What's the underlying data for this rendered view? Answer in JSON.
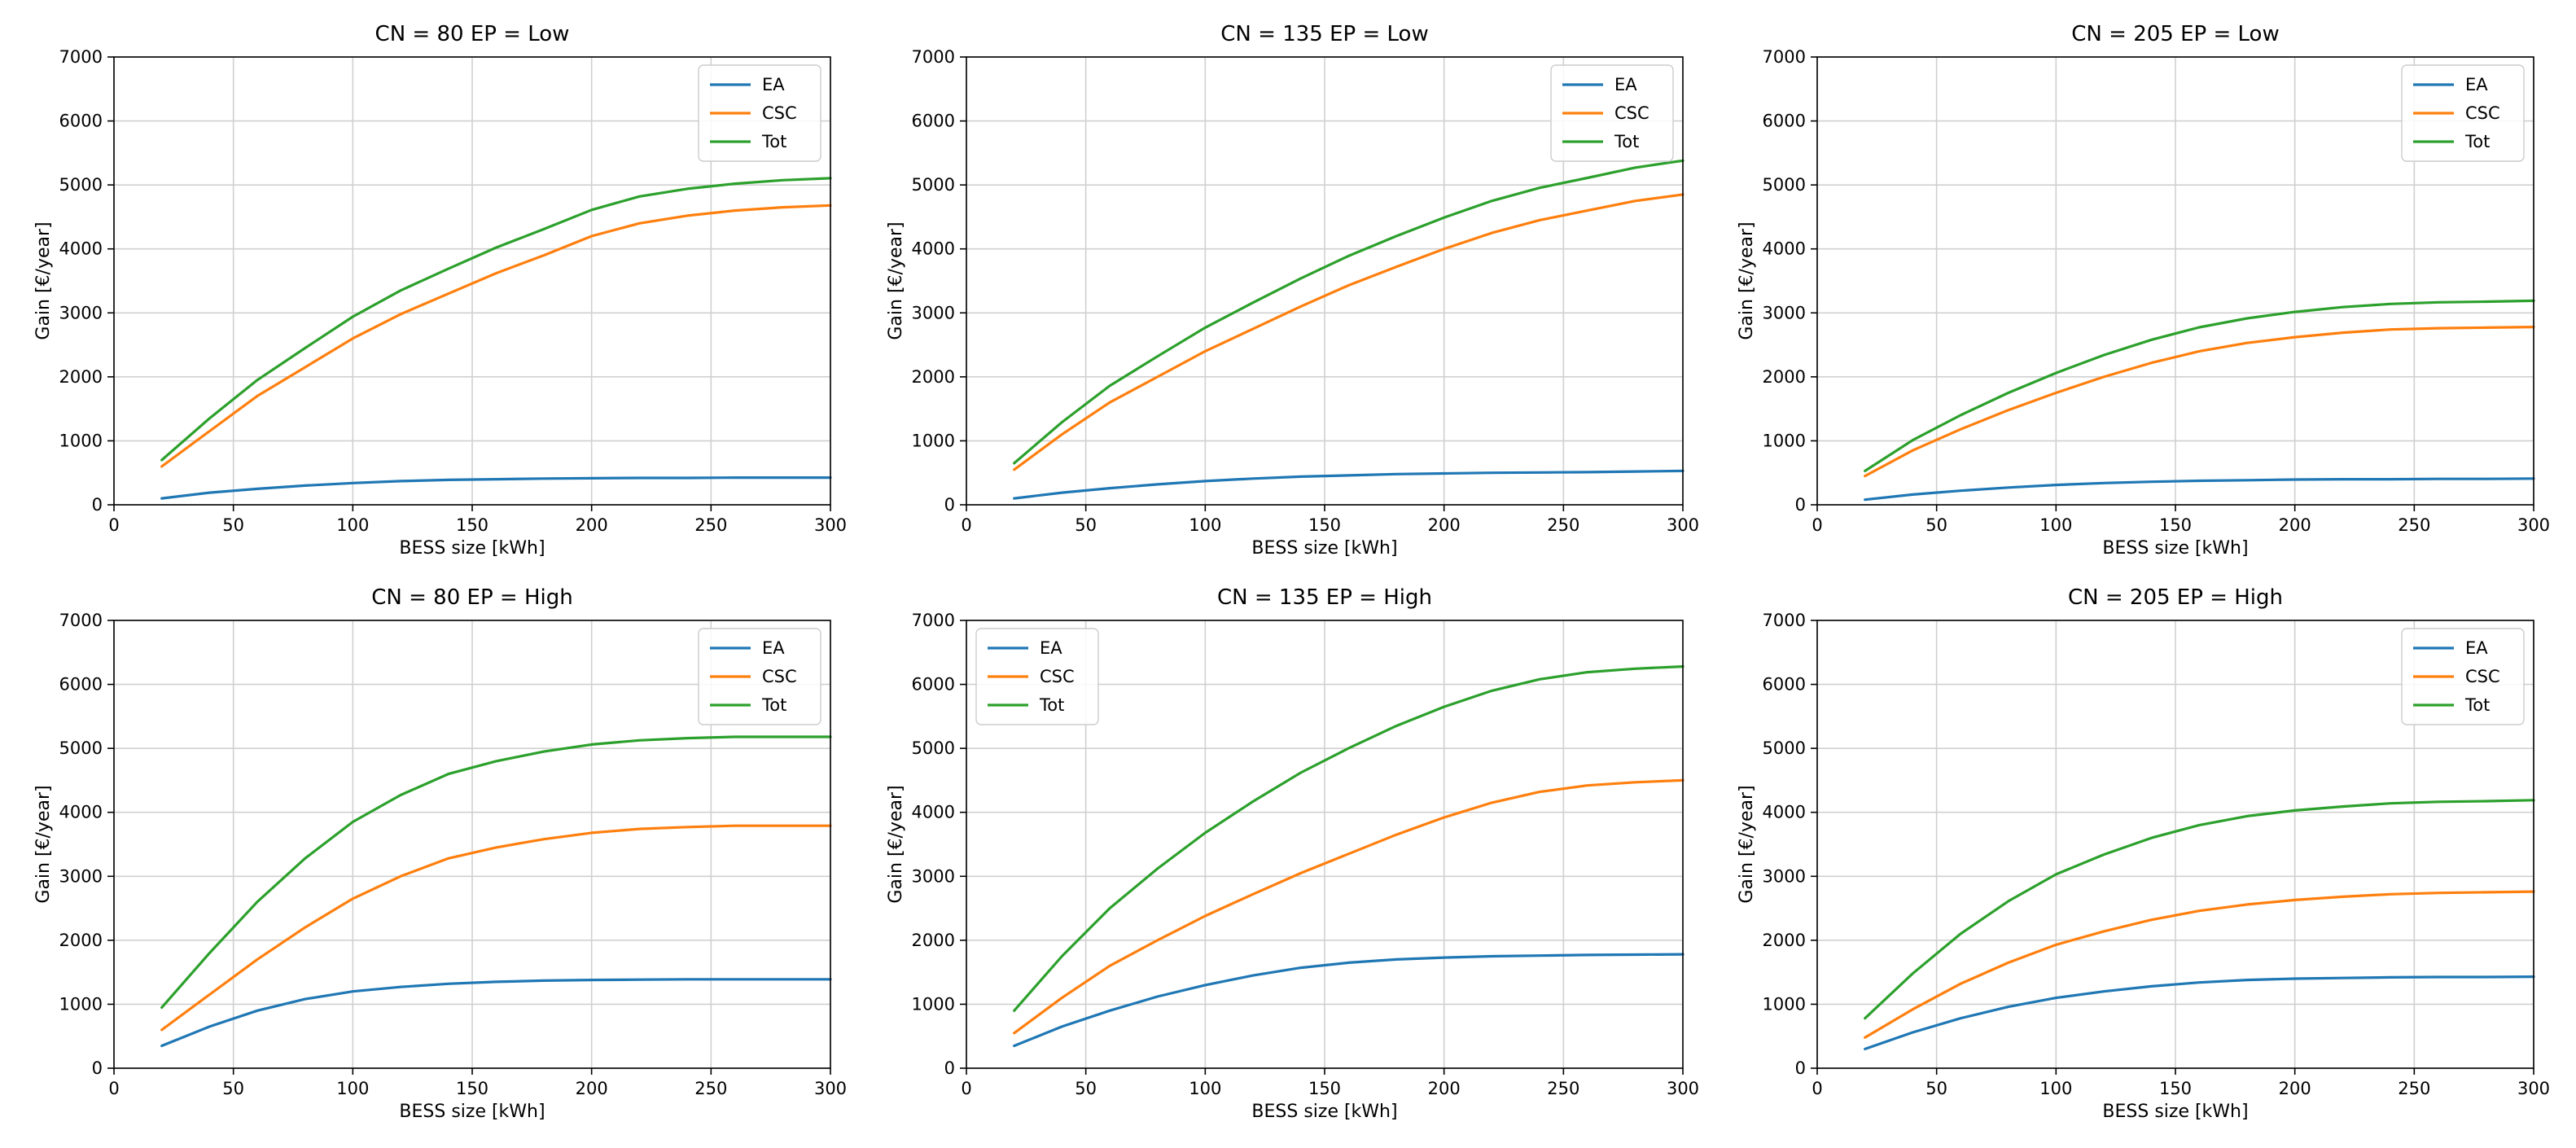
{
  "chart_data": [
    {
      "type": "line",
      "title": "CN = 80 EP = Low",
      "xlabel": "BESS size [kWh]",
      "ylabel": "Gain [€/year]",
      "xlim": [
        0,
        300
      ],
      "ylim": [
        0,
        7000
      ],
      "xticks": [
        0,
        50,
        100,
        150,
        200,
        250,
        300
      ],
      "yticks": [
        0,
        1000,
        2000,
        3000,
        4000,
        5000,
        6000,
        7000
      ],
      "grid": true,
      "legend": "top-right",
      "x": [
        20,
        40,
        60,
        80,
        100,
        120,
        140,
        160,
        180,
        200,
        220,
        240,
        260,
        280,
        300
      ],
      "series": [
        {
          "name": "EA",
          "color": "#1f77b4",
          "values": [
            100,
            190,
            250,
            300,
            340,
            370,
            390,
            400,
            410,
            415,
            420,
            420,
            425,
            425,
            425
          ]
        },
        {
          "name": "CSC",
          "color": "#ff7f0e",
          "values": [
            600,
            1150,
            1700,
            2150,
            2600,
            2980,
            3300,
            3620,
            3900,
            4200,
            4400,
            4520,
            4600,
            4650,
            4680
          ]
        },
        {
          "name": "Tot",
          "color": "#2ca02c",
          "values": [
            700,
            1350,
            1950,
            2450,
            2940,
            3350,
            3690,
            4020,
            4310,
            4610,
            4820,
            4940,
            5020,
            5075,
            5105
          ]
        }
      ]
    },
    {
      "type": "line",
      "title": "CN = 135 EP = Low",
      "xlabel": "BESS size [kWh]",
      "ylabel": "Gain [€/year]",
      "xlim": [
        0,
        300
      ],
      "ylim": [
        0,
        7000
      ],
      "xticks": [
        0,
        50,
        100,
        150,
        200,
        250,
        300
      ],
      "yticks": [
        0,
        1000,
        2000,
        3000,
        4000,
        5000,
        6000,
        7000
      ],
      "grid": true,
      "legend": "top-right",
      "x": [
        20,
        40,
        60,
        80,
        100,
        120,
        140,
        160,
        180,
        200,
        220,
        240,
        260,
        280,
        300
      ],
      "series": [
        {
          "name": "EA",
          "color": "#1f77b4",
          "values": [
            100,
            190,
            260,
            320,
            370,
            410,
            440,
            460,
            480,
            490,
            500,
            505,
            510,
            520,
            530
          ]
        },
        {
          "name": "CSC",
          "color": "#ff7f0e",
          "values": [
            550,
            1100,
            1600,
            2000,
            2400,
            2750,
            3100,
            3430,
            3720,
            4000,
            4250,
            4450,
            4600,
            4750,
            4850
          ]
        },
        {
          "name": "Tot",
          "color": "#2ca02c",
          "values": [
            650,
            1290,
            1860,
            2320,
            2770,
            3160,
            3540,
            3890,
            4200,
            4490,
            4750,
            4955,
            5110,
            5270,
            5380
          ]
        }
      ]
    },
    {
      "type": "line",
      "title": "CN = 205 EP = Low",
      "xlabel": "BESS size [kWh]",
      "ylabel": "Gain [€/year]",
      "xlim": [
        0,
        300
      ],
      "ylim": [
        0,
        7000
      ],
      "xticks": [
        0,
        50,
        100,
        150,
        200,
        250,
        300
      ],
      "yticks": [
        0,
        1000,
        2000,
        3000,
        4000,
        5000,
        6000,
        7000
      ],
      "grid": true,
      "legend": "top-right",
      "x": [
        20,
        40,
        60,
        80,
        100,
        120,
        140,
        160,
        180,
        200,
        220,
        240,
        260,
        280,
        300
      ],
      "series": [
        {
          "name": "EA",
          "color": "#1f77b4",
          "values": [
            80,
            160,
            220,
            270,
            310,
            340,
            360,
            375,
            385,
            395,
            400,
            400,
            405,
            405,
            410
          ]
        },
        {
          "name": "CSC",
          "color": "#ff7f0e",
          "values": [
            450,
            850,
            1180,
            1480,
            1750,
            2000,
            2220,
            2400,
            2530,
            2620,
            2690,
            2740,
            2760,
            2770,
            2780
          ]
        },
        {
          "name": "Tot",
          "color": "#2ca02c",
          "values": [
            530,
            1010,
            1400,
            1750,
            2060,
            2340,
            2580,
            2775,
            2915,
            3015,
            3090,
            3140,
            3165,
            3175,
            3190
          ]
        }
      ]
    },
    {
      "type": "line",
      "title": "CN = 80 EP = High",
      "xlabel": "BESS size [kWh]",
      "ylabel": "Gain [€/year]",
      "xlim": [
        0,
        300
      ],
      "ylim": [
        0,
        7000
      ],
      "xticks": [
        0,
        50,
        100,
        150,
        200,
        250,
        300
      ],
      "yticks": [
        0,
        1000,
        2000,
        3000,
        4000,
        5000,
        6000,
        7000
      ],
      "grid": true,
      "legend": "top-right",
      "x": [
        20,
        40,
        60,
        80,
        100,
        120,
        140,
        160,
        180,
        200,
        220,
        240,
        260,
        280,
        300
      ],
      "series": [
        {
          "name": "EA",
          "color": "#1f77b4",
          "values": [
            350,
            650,
            900,
            1080,
            1200,
            1270,
            1320,
            1350,
            1370,
            1380,
            1385,
            1390,
            1390,
            1390,
            1390
          ]
        },
        {
          "name": "CSC",
          "color": "#ff7f0e",
          "values": [
            600,
            1150,
            1700,
            2200,
            2650,
            3000,
            3280,
            3450,
            3580,
            3680,
            3740,
            3770,
            3790,
            3790,
            3790
          ]
        },
        {
          "name": "Tot",
          "color": "#2ca02c",
          "values": [
            950,
            1800,
            2600,
            3280,
            3850,
            4270,
            4600,
            4800,
            4950,
            5060,
            5125,
            5160,
            5180,
            5180,
            5180
          ]
        }
      ]
    },
    {
      "type": "line",
      "title": "CN = 135 EP = High",
      "xlabel": "BESS size [kWh]",
      "ylabel": "Gain [€/year]",
      "xlim": [
        0,
        300
      ],
      "ylim": [
        0,
        7000
      ],
      "xticks": [
        0,
        50,
        100,
        150,
        200,
        250,
        300
      ],
      "yticks": [
        0,
        1000,
        2000,
        3000,
        4000,
        5000,
        6000,
        7000
      ],
      "grid": true,
      "legend": "top-left",
      "x": [
        20,
        40,
        60,
        80,
        100,
        120,
        140,
        160,
        180,
        200,
        220,
        240,
        260,
        280,
        300
      ],
      "series": [
        {
          "name": "EA",
          "color": "#1f77b4",
          "values": [
            350,
            650,
            900,
            1120,
            1300,
            1450,
            1570,
            1650,
            1700,
            1730,
            1750,
            1760,
            1770,
            1775,
            1780
          ]
        },
        {
          "name": "CSC",
          "color": "#ff7f0e",
          "values": [
            550,
            1100,
            1600,
            2000,
            2380,
            2720,
            3050,
            3350,
            3650,
            3920,
            4150,
            4320,
            4420,
            4470,
            4500
          ]
        },
        {
          "name": "Tot",
          "color": "#2ca02c",
          "values": [
            900,
            1750,
            2500,
            3120,
            3680,
            4170,
            4620,
            5000,
            5350,
            5650,
            5900,
            6080,
            6190,
            6245,
            6280
          ]
        }
      ]
    },
    {
      "type": "line",
      "title": "CN = 205 EP = High",
      "xlabel": "BESS size [kWh]",
      "ylabel": "Gain [€/year]",
      "xlim": [
        0,
        300
      ],
      "ylim": [
        0,
        7000
      ],
      "xticks": [
        0,
        50,
        100,
        150,
        200,
        250,
        300
      ],
      "yticks": [
        0,
        1000,
        2000,
        3000,
        4000,
        5000,
        6000,
        7000
      ],
      "grid": true,
      "legend": "top-right",
      "x": [
        20,
        40,
        60,
        80,
        100,
        120,
        140,
        160,
        180,
        200,
        220,
        240,
        260,
        280,
        300
      ],
      "series": [
        {
          "name": "EA",
          "color": "#1f77b4",
          "values": [
            300,
            560,
            780,
            960,
            1100,
            1200,
            1280,
            1340,
            1380,
            1400,
            1410,
            1420,
            1425,
            1425,
            1430
          ]
        },
        {
          "name": "CSC",
          "color": "#ff7f0e",
          "values": [
            480,
            920,
            1320,
            1650,
            1930,
            2140,
            2320,
            2460,
            2560,
            2630,
            2680,
            2720,
            2740,
            2750,
            2760
          ]
        },
        {
          "name": "Tot",
          "color": "#2ca02c",
          "values": [
            780,
            1480,
            2100,
            2610,
            3030,
            3340,
            3600,
            3800,
            3940,
            4030,
            4090,
            4140,
            4165,
            4175,
            4190
          ]
        }
      ]
    }
  ]
}
